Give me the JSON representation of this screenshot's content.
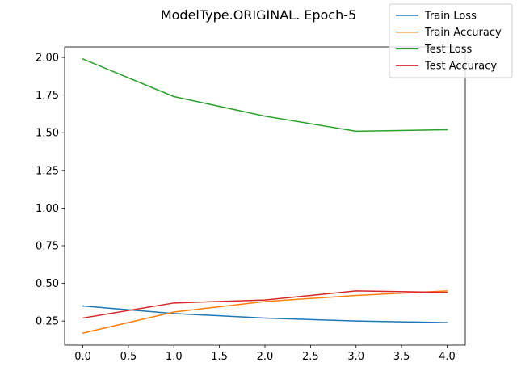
{
  "chart_data": {
    "type": "line",
    "title": "ModelType.ORIGINAL. Epoch-5",
    "xlabel": "",
    "ylabel": "",
    "x": [
      0,
      1,
      2,
      3,
      4
    ],
    "xlim": [
      -0.2,
      4.2
    ],
    "ylim": [
      0.09,
      2.07
    ],
    "xticks": [
      0.0,
      0.5,
      1.0,
      1.5,
      2.0,
      2.5,
      3.0,
      3.5,
      4.0
    ],
    "xtick_labels": [
      "0.0",
      "0.5",
      "1.0",
      "1.5",
      "2.0",
      "2.5",
      "3.0",
      "3.5",
      "4.0"
    ],
    "yticks": [
      0.25,
      0.5,
      0.75,
      1.0,
      1.25,
      1.5,
      1.75,
      2.0
    ],
    "ytick_labels": [
      "0.25",
      "0.50",
      "0.75",
      "1.00",
      "1.25",
      "1.50",
      "1.75",
      "2.00"
    ],
    "grid": false,
    "legend_position": "top-right",
    "series": [
      {
        "name": "Train Loss",
        "color": "#1f77b4",
        "values": [
          0.35,
          0.3,
          0.27,
          0.25,
          0.24
        ]
      },
      {
        "name": "Train Accuracy",
        "color": "#ff7f0e",
        "values": [
          0.17,
          0.31,
          0.38,
          0.42,
          0.45
        ]
      },
      {
        "name": "Test Loss",
        "color": "#2ca02c",
        "values": [
          1.99,
          1.74,
          1.61,
          1.51,
          1.52
        ]
      },
      {
        "name": "Test Accuracy",
        "color": "#d62728",
        "values": [
          0.27,
          0.37,
          0.39,
          0.45,
          0.44
        ]
      }
    ]
  }
}
